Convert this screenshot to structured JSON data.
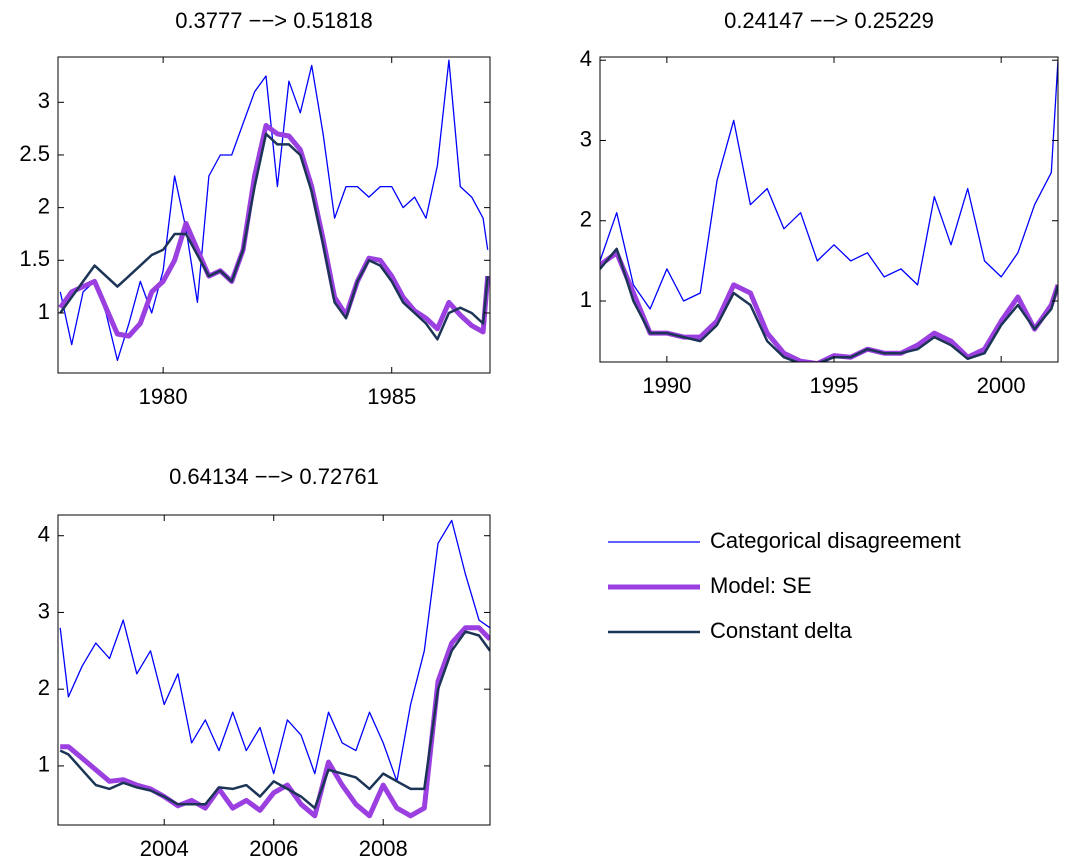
{
  "chart_data": [
    {
      "type": "line",
      "title": "0.3777 −−> 0.51818",
      "x": [
        1977.75,
        1978,
        1978.25,
        1978.5,
        1978.75,
        1979,
        1979.25,
        1979.5,
        1979.75,
        1980,
        1980.25,
        1980.5,
        1980.75,
        1981,
        1981.25,
        1981.5,
        1981.75,
        1982,
        1982.25,
        1982.5,
        1982.75,
        1983,
        1983.25,
        1983.5,
        1983.75,
        1984,
        1984.25,
        1984.5,
        1984.75,
        1985,
        1985.25,
        1985.5,
        1985.75,
        1986,
        1986.25,
        1986.5,
        1986.75,
        1987,
        1987.1
      ],
      "xlim": [
        1977.7,
        1987.15
      ],
      "xticks": [
        1980,
        1985
      ],
      "ylim": [
        0.43,
        3.43
      ],
      "yticks": [
        1,
        1.5,
        2,
        2.5,
        3
      ],
      "series": [
        {
          "name": "Categorical disagreement",
          "color": "#0000ff",
          "values": [
            1.2,
            0.7,
            1.2,
            1.3,
            1.0,
            0.55,
            0.9,
            1.3,
            1.0,
            1.4,
            2.3,
            1.8,
            1.1,
            2.3,
            2.5,
            2.5,
            2.8,
            3.1,
            3.25,
            2.2,
            3.2,
            2.9,
            3.35,
            2.7,
            1.9,
            2.2,
            2.2,
            2.1,
            2.2,
            2.2,
            2.0,
            2.1,
            1.9,
            2.4,
            3.4,
            2.2,
            2.1,
            1.9,
            1.6
          ]
        },
        {
          "name": "Model: SE",
          "color": "#9b3fe0",
          "values": [
            1.05,
            1.2,
            1.25,
            1.3,
            1.05,
            0.8,
            0.78,
            0.9,
            1.2,
            1.3,
            1.5,
            1.85,
            1.6,
            1.35,
            1.4,
            1.3,
            1.6,
            2.3,
            2.78,
            2.7,
            2.68,
            2.55,
            2.2,
            1.7,
            1.15,
            0.98,
            1.3,
            1.52,
            1.5,
            1.35,
            1.15,
            1.02,
            0.95,
            0.85,
            1.1,
            0.98,
            0.88,
            0.82,
            1.35
          ]
        },
        {
          "name": "Constant delta",
          "color": "#1c3557",
          "values": [
            1.0,
            1.15,
            1.3,
            1.45,
            1.35,
            1.25,
            1.35,
            1.45,
            1.55,
            1.6,
            1.75,
            1.75,
            1.55,
            1.35,
            1.4,
            1.3,
            1.6,
            2.2,
            2.7,
            2.6,
            2.6,
            2.5,
            2.15,
            1.65,
            1.1,
            0.95,
            1.3,
            1.5,
            1.45,
            1.3,
            1.1,
            1.0,
            0.9,
            0.75,
            1.0,
            1.05,
            1.0,
            0.9,
            1.35
          ]
        }
      ]
    },
    {
      "type": "line",
      "title": "0.24147 −−> 0.25229",
      "x": [
        1988,
        1988.5,
        1989,
        1989.5,
        1990,
        1990.5,
        1991,
        1991.5,
        1992,
        1992.5,
        1993,
        1993.5,
        1994,
        1994.5,
        1995,
        1995.5,
        1996,
        1996.5,
        1997,
        1997.5,
        1998,
        1998.5,
        1999,
        1999.5,
        2000,
        2000.5,
        2001,
        2001.5,
        2001.7
      ],
      "xlim": [
        1988.0,
        2001.7
      ],
      "xticks": [
        1990,
        1995,
        2000
      ],
      "ylim": [
        0.24,
        4.04
      ],
      "yticks": [
        1,
        2,
        3,
        4
      ],
      "series": [
        {
          "color": "#0000ff",
          "values": [
            1.5,
            2.1,
            1.2,
            0.9,
            1.4,
            1.0,
            1.1,
            2.5,
            3.25,
            2.2,
            2.4,
            1.9,
            2.1,
            1.5,
            1.7,
            1.5,
            1.6,
            1.3,
            1.4,
            1.2,
            2.3,
            1.7,
            2.4,
            1.5,
            1.3,
            1.6,
            2.2,
            2.6,
            4.0
          ]
        },
        {
          "color": "#9b3fe0",
          "values": [
            1.45,
            1.6,
            1.1,
            0.6,
            0.6,
            0.55,
            0.55,
            0.75,
            1.2,
            1.1,
            0.6,
            0.35,
            0.25,
            0.22,
            0.32,
            0.3,
            0.4,
            0.35,
            0.35,
            0.45,
            0.6,
            0.5,
            0.3,
            0.4,
            0.75,
            1.05,
            0.65,
            0.95,
            1.2
          ]
        },
        {
          "color": "#1c3557",
          "values": [
            1.4,
            1.65,
            1.0,
            0.6,
            0.6,
            0.55,
            0.5,
            0.7,
            1.1,
            0.95,
            0.5,
            0.3,
            0.22,
            0.22,
            0.3,
            0.3,
            0.4,
            0.35,
            0.35,
            0.4,
            0.55,
            0.45,
            0.28,
            0.35,
            0.7,
            0.95,
            0.65,
            0.9,
            1.2
          ]
        }
      ]
    },
    {
      "type": "line",
      "title": "0.64134 −−> 0.72761",
      "x": [
        2002.1,
        2002.25,
        2002.5,
        2002.75,
        2003,
        2003.25,
        2003.5,
        2003.75,
        2004,
        2004.25,
        2004.5,
        2004.75,
        2005,
        2005.25,
        2005.5,
        2005.75,
        2006,
        2006.25,
        2006.5,
        2006.75,
        2007,
        2007.25,
        2007.5,
        2007.75,
        2008,
        2008.25,
        2008.5,
        2008.75,
        2009,
        2009.25,
        2009.5,
        2009.75,
        2009.95
      ],
      "xlim": [
        2002.06,
        2009.95
      ],
      "xticks": [
        2004,
        2006,
        2008
      ],
      "ylim": [
        0.23,
        4.27
      ],
      "yticks": [
        1,
        2,
        3,
        4
      ],
      "series": [
        {
          "color": "#0000ff",
          "values": [
            2.8,
            1.9,
            2.3,
            2.6,
            2.4,
            2.9,
            2.2,
            2.5,
            1.8,
            2.2,
            1.3,
            1.6,
            1.2,
            1.7,
            1.2,
            1.5,
            0.9,
            1.6,
            1.4,
            0.9,
            1.7,
            1.3,
            1.2,
            1.7,
            1.3,
            0.8,
            1.8,
            2.5,
            3.9,
            4.2,
            3.5,
            2.9,
            2.8
          ]
        },
        {
          "color": "#9b3fe0",
          "values": [
            1.25,
            1.25,
            1.1,
            0.95,
            0.8,
            0.82,
            0.75,
            0.7,
            0.6,
            0.48,
            0.55,
            0.45,
            0.7,
            0.45,
            0.55,
            0.42,
            0.65,
            0.75,
            0.5,
            0.35,
            1.05,
            0.75,
            0.5,
            0.35,
            0.75,
            0.45,
            0.35,
            0.45,
            2.1,
            2.6,
            2.8,
            2.8,
            2.65
          ]
        },
        {
          "color": "#1c3557",
          "values": [
            1.2,
            1.15,
            0.95,
            0.75,
            0.7,
            0.78,
            0.72,
            0.68,
            0.6,
            0.5,
            0.5,
            0.5,
            0.72,
            0.7,
            0.75,
            0.6,
            0.8,
            0.7,
            0.6,
            0.45,
            0.95,
            0.9,
            0.85,
            0.7,
            0.9,
            0.8,
            0.7,
            0.7,
            2.0,
            2.5,
            2.75,
            2.7,
            2.5
          ]
        }
      ]
    }
  ]
}
